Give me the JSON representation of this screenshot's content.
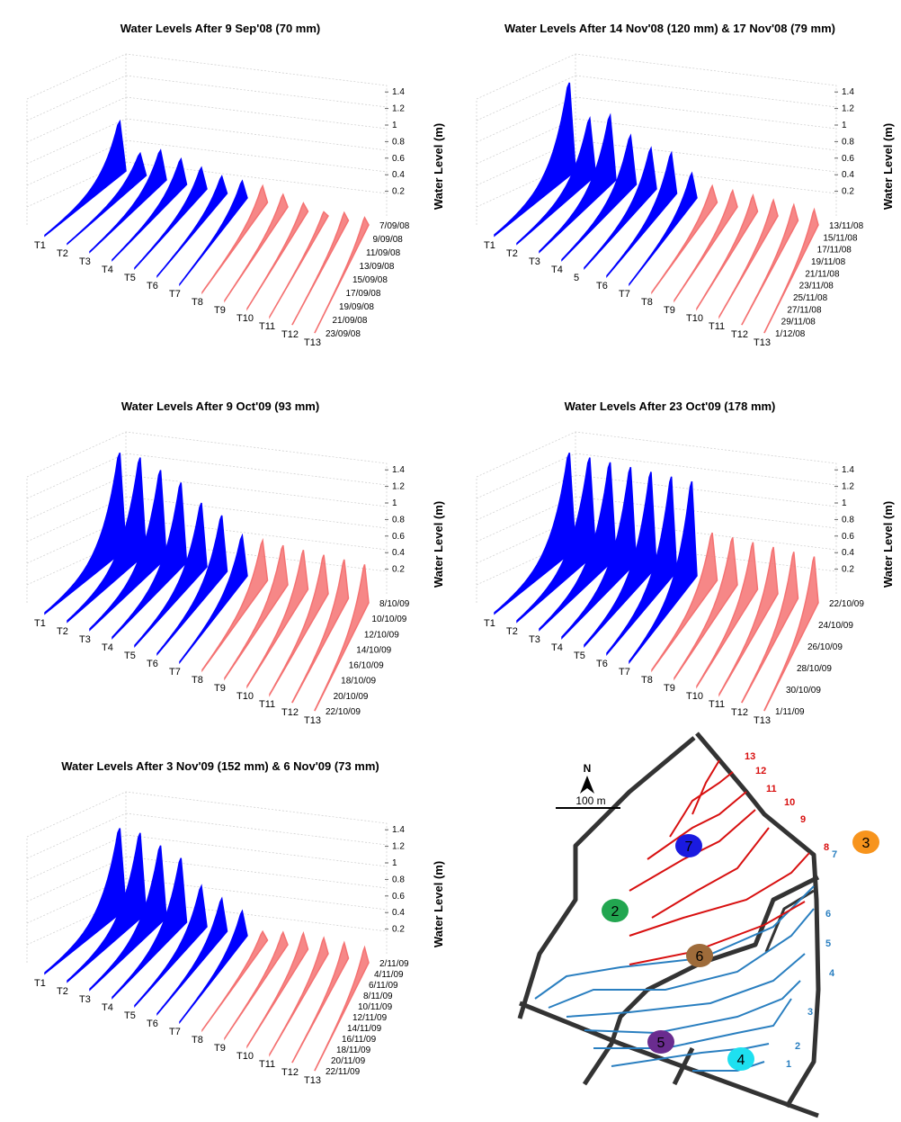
{
  "chart_data": [
    {
      "type": "waterfall3d",
      "title": "Water Levels After 9 Sep'08 (70 mm)",
      "zlabel": "Water Level (m)",
      "zlim": [
        0,
        1.4
      ],
      "zticks": [
        0.2,
        0.4,
        0.6,
        0.8,
        1,
        1.2,
        1.4
      ],
      "categories": [
        "T1",
        "T2",
        "T3",
        "T4",
        "T5",
        "T6",
        "T7",
        "T8",
        "T9",
        "T10",
        "T11",
        "T12",
        "T13"
      ],
      "dates": [
        "7/09/08",
        "9/09/08",
        "11/09/08",
        "13/09/08",
        "15/09/08",
        "17/09/08",
        "19/09/08",
        "21/09/08",
        "23/09/08"
      ],
      "series": [
        {
          "color": "#0000ff",
          "values": [
            0.7,
            0.35,
            0.45,
            0.4,
            0.35,
            0.3,
            0.3,
            null,
            null,
            null,
            null,
            null,
            null
          ]
        },
        {
          "color": "#f47272",
          "values": [
            null,
            null,
            null,
            null,
            null,
            null,
            null,
            0.3,
            0.25,
            0.2,
            0.15,
            0.2,
            0.2
          ]
        }
      ]
    },
    {
      "type": "waterfall3d",
      "title": "Water Levels After 14 Nov'08 (120 mm) & 17 Nov'08 (79 mm)",
      "zlabel": "Water Level (m)",
      "zlim": [
        0,
        1.4
      ],
      "zticks": [
        0.2,
        0.4,
        0.6,
        0.8,
        1,
        1.2,
        1.4
      ],
      "categories": [
        "T1",
        "T2",
        "T3",
        "T4",
        "5",
        "T6",
        "T7",
        "T8",
        "T9",
        "T10",
        "T11",
        "T12",
        "T13"
      ],
      "dates": [
        "13/11/08",
        "15/11/08",
        "17/11/08",
        "19/11/08",
        "21/11/08",
        "23/11/08",
        "25/11/08",
        "27/11/08",
        "29/11/08",
        "1/12/08"
      ],
      "series": [
        {
          "color": "#0000ff",
          "values": [
            1.2,
            0.8,
            0.9,
            0.7,
            0.6,
            0.6,
            0.4,
            null,
            null,
            null,
            null,
            null,
            null
          ]
        },
        {
          "color": "#f47272",
          "values": [
            null,
            null,
            null,
            null,
            null,
            null,
            null,
            0.3,
            0.3,
            0.3,
            0.3,
            0.3,
            0.3
          ]
        }
      ]
    },
    {
      "type": "waterfall3d",
      "title": "Water Levels After 9 Oct'09 (93 mm)",
      "zlabel": "Water Level (m)",
      "zlim": [
        0,
        1.4
      ],
      "zticks": [
        0.2,
        0.4,
        0.6,
        0.8,
        1,
        1.2,
        1.4
      ],
      "categories": [
        "T1",
        "T2",
        "T3",
        "T4",
        "T5",
        "T6",
        "T7",
        "T8",
        "T9",
        "T10",
        "T11",
        "T12",
        "T13"
      ],
      "dates": [
        "8/10/09",
        "10/10/09",
        "12/10/09",
        "14/10/09",
        "16/10/09",
        "18/10/09",
        "20/10/09",
        "22/10/09"
      ],
      "series": [
        {
          "color": "#0000ff",
          "values": [
            1.3,
            1.3,
            1.2,
            1.1,
            0.9,
            0.8,
            0.6,
            null,
            null,
            null,
            null,
            null,
            null
          ]
        },
        {
          "color": "#f47272",
          "values": [
            null,
            null,
            null,
            null,
            null,
            null,
            null,
            0.6,
            0.6,
            0.6,
            0.6,
            0.6,
            0.6
          ]
        }
      ]
    },
    {
      "type": "waterfall3d",
      "title": "Water Levels After 23 Oct'09 (178 mm)",
      "zlabel": "Water Level (m)",
      "zlim": [
        0,
        1.4
      ],
      "zticks": [
        0.2,
        0.4,
        0.6,
        0.8,
        1,
        1.2,
        1.4
      ],
      "categories": [
        "T1",
        "T2",
        "T3",
        "T4",
        "T5",
        "T6",
        "T7",
        "T8",
        "T9",
        "T10",
        "T11",
        "T12",
        "T13"
      ],
      "dates": [
        "22/10/09",
        "24/10/09",
        "26/10/09",
        "28/10/09",
        "30/10/09",
        "1/11/09"
      ],
      "series": [
        {
          "color": "#0000ff",
          "values": [
            1.3,
            1.3,
            1.3,
            1.3,
            1.3,
            1.3,
            1.3,
            null,
            null,
            null,
            null,
            null,
            null
          ]
        },
        {
          "color": "#f47272",
          "values": [
            null,
            null,
            null,
            null,
            null,
            null,
            null,
            0.7,
            0.7,
            0.7,
            0.7,
            0.7,
            0.7
          ]
        }
      ]
    },
    {
      "type": "waterfall3d",
      "title": "Water Levels After 3 Nov'09 (152 mm)  & 6 Nov'09 (73 mm)",
      "zlabel": "Water Level (m)",
      "zlim": [
        0,
        1.4
      ],
      "zticks": [
        0.2,
        0.4,
        0.6,
        0.8,
        1,
        1.2,
        1.4
      ],
      "categories": [
        "T1",
        "T2",
        "T3",
        "T4",
        "T5",
        "T6",
        "T7",
        "T8",
        "T9",
        "T10",
        "T11",
        "T12",
        "T13"
      ],
      "dates": [
        "2/11/09",
        "4/11/09",
        "6/11/09",
        "8/11/09",
        "10/11/09",
        "12/11/09",
        "14/11/09",
        "16/11/09",
        "18/11/09",
        "20/11/09",
        "22/11/09"
      ],
      "series": [
        {
          "color": "#0000ff",
          "values": [
            1.1,
            1.1,
            1.0,
            0.9,
            0.6,
            0.5,
            0.4,
            null,
            null,
            null,
            null,
            null,
            null
          ]
        },
        {
          "color": "#f47272",
          "values": [
            null,
            null,
            null,
            null,
            null,
            null,
            null,
            0.2,
            0.25,
            0.3,
            0.3,
            0.3,
            0.3
          ]
        }
      ]
    }
  ],
  "map": {
    "north": "N",
    "scale": "100 m",
    "contours": [
      {
        "label": "1",
        "color": "#2a7fc0"
      },
      {
        "label": "2",
        "color": "#2a7fc0"
      },
      {
        "label": "3",
        "color": "#2a7fc0"
      },
      {
        "label": "4",
        "color": "#2a7fc0"
      },
      {
        "label": "5",
        "color": "#2a7fc0"
      },
      {
        "label": "6",
        "color": "#2a7fc0"
      },
      {
        "label": "7",
        "color": "#2a7fc0"
      },
      {
        "label": "8",
        "color": "#d81010"
      },
      {
        "label": "9",
        "color": "#d81010"
      },
      {
        "label": "10",
        "color": "#d81010"
      },
      {
        "label": "11",
        "color": "#d81010"
      },
      {
        "label": "12",
        "color": "#d81010"
      },
      {
        "label": "13",
        "color": "#d81010"
      }
    ],
    "sites": [
      {
        "label": "7",
        "color": "#1a1ae0"
      },
      {
        "label": "2",
        "color": "#22a650"
      },
      {
        "label": "3",
        "color": "#f7941d"
      },
      {
        "label": "6",
        "color": "#9e6b3a"
      },
      {
        "label": "5",
        "color": "#6a2c8f"
      },
      {
        "label": "4",
        "color": "#1ee0f0"
      }
    ]
  }
}
